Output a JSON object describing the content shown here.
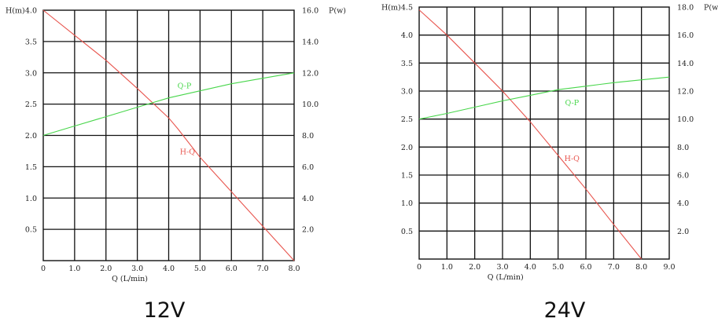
{
  "chart_data": [
    {
      "type": "line",
      "caption": "12V",
      "xlabel": "Q (L/min)",
      "ylabel": "H(m)",
      "y2label": "P(w)",
      "xlim": [
        0,
        8
      ],
      "ylim": [
        0,
        4
      ],
      "y2lim": [
        0,
        16
      ],
      "x_ticks": [
        "0",
        "1.0",
        "2.0",
        "3.0",
        "4.0",
        "5.0",
        "6.0",
        "7.0",
        "8.0"
      ],
      "y_ticks": [
        "0.5",
        "1.0",
        "1.5",
        "2.0",
        "2.5",
        "3.0",
        "3.5",
        "4.0"
      ],
      "y2_ticks": [
        "2.0",
        "4.0",
        "6.0",
        "8.0",
        "10.0",
        "12.0",
        "14.0",
        "16.0"
      ],
      "grid": true,
      "series": [
        {
          "name": "H-Q",
          "axis": "left",
          "color": "#e8554e",
          "x": [
            0,
            1,
            2,
            3,
            4,
            4.3,
            5,
            6,
            7,
            8
          ],
          "y": [
            4.0,
            3.6,
            3.2,
            2.75,
            2.28,
            2.1,
            1.65,
            1.1,
            0.55,
            0.0
          ]
        },
        {
          "name": "Q-P",
          "axis": "right",
          "color": "#48d64b",
          "x": [
            0,
            1,
            2,
            3,
            4,
            5,
            6,
            7,
            8
          ],
          "y": [
            8.0,
            8.6,
            9.2,
            9.8,
            10.4,
            10.85,
            11.3,
            11.65,
            12.0
          ]
        }
      ]
    },
    {
      "type": "line",
      "caption": "24V",
      "xlabel": "Q (L/min)",
      "ylabel": "H(m)",
      "y2label": "P(w)",
      "xlim": [
        0,
        9
      ],
      "ylim": [
        0,
        4.5
      ],
      "y2lim": [
        0,
        18
      ],
      "x_ticks": [
        "0",
        "1.0",
        "2.0",
        "3.0",
        "4.0",
        "5.0",
        "6.0",
        "7.0",
        "8.0",
        "9.0"
      ],
      "y_ticks": [
        "0.5",
        "1.0",
        "1.5",
        "2.0",
        "2.5",
        "3.0",
        "3.5",
        "4.0",
        "4.5"
      ],
      "y2_ticks": [
        "2.0",
        "4.0",
        "6.0",
        "8.0",
        "10.0",
        "12.0",
        "14.0",
        "16.0",
        "18.0"
      ],
      "grid": true,
      "series": [
        {
          "name": "H-Q",
          "axis": "left",
          "color": "#e8554e",
          "x": [
            0,
            1,
            2,
            3,
            4,
            5,
            6,
            7,
            8
          ],
          "y": [
            4.45,
            4.0,
            3.5,
            3.0,
            2.45,
            1.85,
            1.25,
            0.62,
            0.0
          ]
        },
        {
          "name": "Q-P",
          "axis": "right",
          "color": "#48d64b",
          "x": [
            0,
            1,
            2,
            3,
            4,
            5,
            6,
            7,
            8,
            9
          ],
          "y": [
            10.0,
            10.4,
            10.85,
            11.3,
            11.7,
            12.1,
            12.35,
            12.6,
            12.8,
            13.0
          ]
        }
      ]
    }
  ]
}
